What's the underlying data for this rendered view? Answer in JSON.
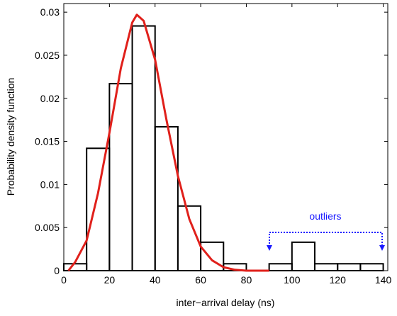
{
  "chart_data": {
    "type": "histogram",
    "xlabel": "inter−arrival delay (ns)",
    "ylabel": "Probability density function",
    "bins": [
      0,
      10,
      20,
      30,
      40,
      50,
      60,
      70,
      80,
      90,
      100,
      110,
      120,
      130,
      140
    ],
    "values": [
      0.0008,
      0.0142,
      0.0217,
      0.0284,
      0.0167,
      0.0075,
      0.0033,
      0.0008,
      0,
      0.0008,
      0.0033,
      0.0008,
      0.0008,
      0.0008
    ],
    "color": "#000000",
    "fit": {
      "color": "#e0201b",
      "x": [
        2,
        5,
        10,
        15,
        20,
        25,
        30,
        32,
        35,
        40,
        45,
        50,
        55,
        60,
        65,
        70,
        75,
        80,
        90
      ],
      "values": [
        0,
        0.001,
        0.0035,
        0.009,
        0.016,
        0.0235,
        0.0288,
        0.0297,
        0.029,
        0.0245,
        0.0175,
        0.011,
        0.006,
        0.0028,
        0.0012,
        0.0004,
        0.0001,
        0,
        0
      ]
    },
    "annotation": {
      "text": "outliers",
      "color": "#1a1aff"
    },
    "xlim": [
      0,
      142
    ],
    "ylim": [
      0,
      0.031
    ],
    "xticks": [
      0,
      20,
      40,
      60,
      80,
      100,
      120,
      140
    ],
    "yticks": [
      0,
      0.005,
      0.01,
      0.015,
      0.02,
      0.025,
      0.03
    ]
  }
}
